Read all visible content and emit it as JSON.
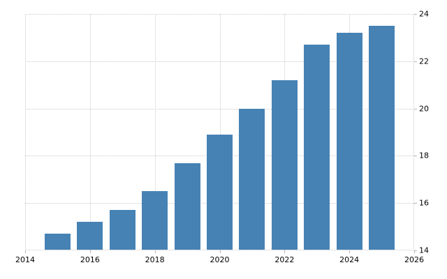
{
  "chart_data": {
    "type": "bar",
    "title": "",
    "xlabel": "",
    "ylabel": "",
    "x": [
      2015,
      2016,
      2017,
      2018,
      2019,
      2020,
      2021,
      2022,
      2023,
      2024,
      2025
    ],
    "values": [
      14.7,
      15.2,
      15.7,
      16.5,
      17.7,
      18.9,
      20.0,
      21.2,
      22.7,
      23.2,
      23.5
    ],
    "xlim": [
      2014,
      2026
    ],
    "ylim": [
      14,
      24
    ],
    "x_ticks": [
      2014,
      2016,
      2018,
      2020,
      2022,
      2024,
      2026
    ],
    "y_ticks": [
      14,
      16,
      18,
      20,
      22,
      24
    ],
    "grid": "dotted",
    "legend_visible": false,
    "y_axis_side": "right",
    "bar_width_fraction": 0.8,
    "colors": {
      "bar": "#4682b4",
      "grid": "#c9c9c9",
      "tick": "#b4b4b4",
      "label": "#000000",
      "background": "#ffffff"
    }
  }
}
